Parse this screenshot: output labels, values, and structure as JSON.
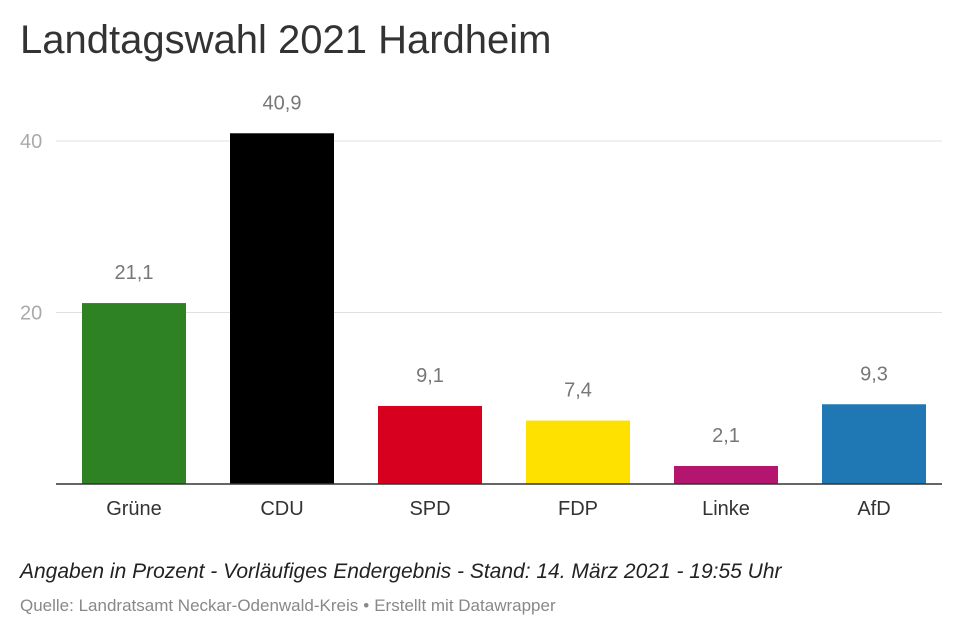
{
  "header": {
    "title": "Landtagswahl 2021 Hardheim"
  },
  "footer": {
    "note": "Angaben in Prozent - Vorläufiges Endergebnis - Stand: 14. März 2021 - 19:55 Uhr",
    "source": "Quelle: Landratsamt Neckar-Odenwald-Kreis",
    "separator": "•",
    "credit": "Erstellt mit Datawrapper"
  },
  "chart_data": {
    "type": "bar",
    "title": "Landtagswahl 2021 Hardheim",
    "xlabel": "",
    "ylabel": "",
    "categories": [
      "Grüne",
      "CDU",
      "SPD",
      "FDP",
      "Linke",
      "AfD"
    ],
    "values": [
      21.1,
      40.9,
      9.1,
      7.4,
      2.1,
      9.3
    ],
    "value_labels": [
      "21,1",
      "40,9",
      "9,1",
      "7,4",
      "2,1",
      "9,3"
    ],
    "colors": [
      "#2e8224",
      "#000000",
      "#d7001e",
      "#ffe100",
      "#b3156f",
      "#1f77b4"
    ],
    "yticks": [
      20,
      40
    ],
    "ylim": [
      0,
      40
    ],
    "grid": true,
    "legend": "none"
  }
}
